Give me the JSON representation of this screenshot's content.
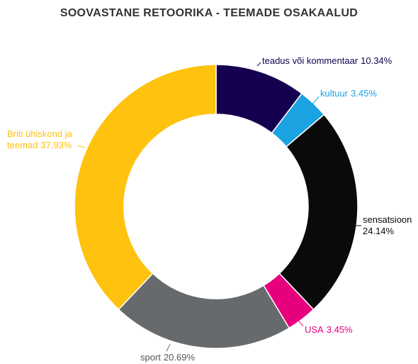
{
  "chart_data": {
    "type": "donut",
    "title": "SOOVASTANE RETOORIKA - TEEMADE OSAKAALUD",
    "categories": [
      "teadus või kommentaar",
      "kultuur",
      "sensatsioon",
      "USA",
      "sport",
      "Briti ühiskond ja teemad"
    ],
    "values": [
      10.34,
      3.45,
      24.14,
      3.45,
      20.69,
      37.93
    ],
    "value_labels": [
      "10.34%",
      "3.45%",
      "24.14%",
      "3.45%",
      "20.69%",
      "37.93%"
    ],
    "colors": [
      "#14004f",
      "#1aa3e0",
      "#0a0a0a",
      "#e6007e",
      "#676a6c",
      "#ffc20e"
    ]
  }
}
